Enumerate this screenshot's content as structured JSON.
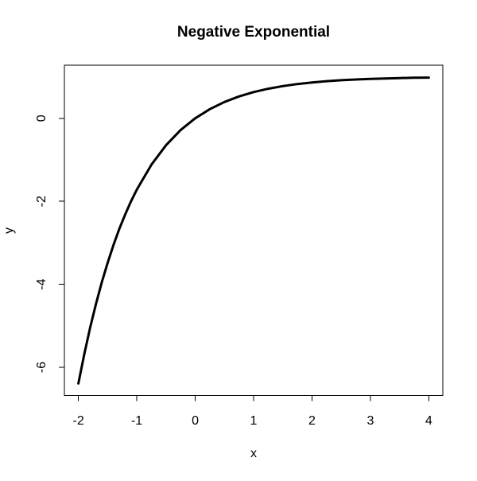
{
  "figure": {
    "background_color": "#ffffff",
    "axis_color": "#000000",
    "curve_color": "#000000"
  },
  "chart_data": {
    "type": "line",
    "title": "Negative Exponential",
    "xlabel": "x",
    "ylabel": "y",
    "function": "y = 1 - exp(-x)",
    "xlim": [
      -2.24,
      4.24
    ],
    "ylim": [
      -6.68,
      1.28
    ],
    "x_ticks": [
      -2,
      -1,
      0,
      1,
      2,
      3,
      4
    ],
    "y_ticks": [
      0,
      -2,
      -4,
      -6
    ],
    "grid": false,
    "legend": "none",
    "series": [
      {
        "name": "negative-exponential",
        "color": "#000000",
        "x": [
          -2.0,
          -1.9,
          -1.8,
          -1.7,
          -1.6,
          -1.5,
          -1.4,
          -1.3,
          -1.2,
          -1.1,
          -1.0,
          -0.75,
          -0.5,
          -0.25,
          0.0,
          0.25,
          0.5,
          0.75,
          1.0,
          1.25,
          1.5,
          1.75,
          2.0,
          2.25,
          2.5,
          2.75,
          3.0,
          3.25,
          3.5,
          3.75,
          4.0
        ],
        "y": [
          -6.389,
          -5.686,
          -5.05,
          -4.474,
          -3.953,
          -3.482,
          -3.055,
          -2.669,
          -2.32,
          -2.004,
          -1.718,
          -1.117,
          -0.649,
          -0.284,
          0.0,
          0.221,
          0.393,
          0.528,
          0.632,
          0.713,
          0.777,
          0.826,
          0.865,
          0.895,
          0.918,
          0.936,
          0.95,
          0.961,
          0.97,
          0.977,
          0.982
        ]
      }
    ]
  }
}
